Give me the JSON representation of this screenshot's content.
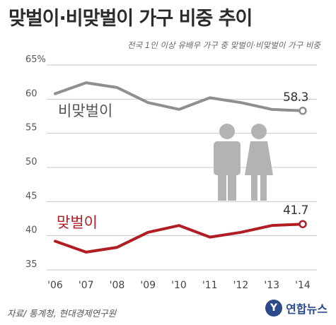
{
  "title": "맞벌이·비맞벌이 가구 비중 추이",
  "subtitle": "전국 1인 이상 유배우 가구 중 맞벌이·비맞벌이 가구 비중",
  "source": "자료/ 통계청, 현대경제연구원",
  "logo": {
    "mark": "Y",
    "text": "연합뉴스"
  },
  "colors": {
    "non_dual": "#8f8f8f",
    "dual": "#b01e24",
    "grid": "#c8c8c8",
    "figure": "#b3b3b3"
  },
  "icons": [
    "couple-icon"
  ],
  "chart_data": {
    "type": "line",
    "categories": [
      "'06",
      "'07",
      "'08",
      "'09",
      "'10",
      "'11",
      "'12",
      "'13",
      "'14"
    ],
    "y_ticks": [
      "65%",
      "60",
      "55",
      "50",
      "45",
      "40",
      "35"
    ],
    "y_tick_values": [
      65,
      60,
      55,
      50,
      45,
      40,
      35
    ],
    "ylim": [
      35,
      65
    ],
    "grid": true,
    "series": [
      {
        "name": "비맞벌이",
        "values": [
          60.8,
          62.4,
          61.7,
          59.5,
          58.5,
          60.2,
          59.5,
          58.5,
          58.3
        ],
        "end_label": "58.3"
      },
      {
        "name": "맞벌이",
        "values": [
          39.2,
          37.6,
          38.3,
          40.5,
          41.5,
          39.8,
          40.5,
          41.5,
          41.7
        ],
        "end_label": "41.7"
      }
    ]
  }
}
